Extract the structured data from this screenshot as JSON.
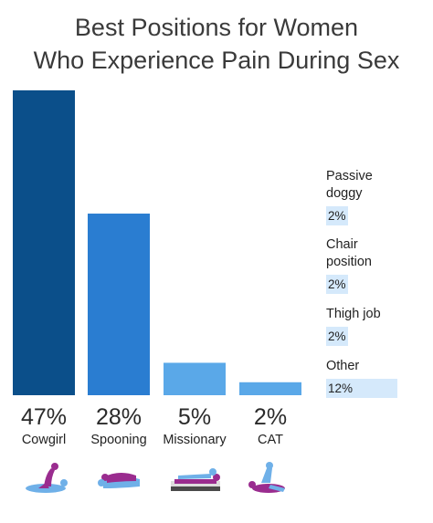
{
  "title_lines": [
    "Best Positions for Women",
    "Who Experience Pain During Sex"
  ],
  "colors": {
    "bar_dark": "#0b4f8a",
    "bar_mid": "#2a7dd1",
    "bar_light": "#5aa8e8",
    "side_fill": "#d5e9fb",
    "icon_purple": "#9a2c8f",
    "icon_blue": "#6fb0e8"
  },
  "chart_data": {
    "type": "bar",
    "title": "Best Positions for Women Who Experience Pain During Sex",
    "categories": [
      "Cowgirl",
      "Spooning",
      "Missionary",
      "CAT"
    ],
    "values": [
      47,
      28,
      5,
      2
    ],
    "value_labels": [
      "47%",
      "28%",
      "5%",
      "2%"
    ],
    "icons": [
      "cowgirl-position-icon",
      "spooning-position-icon",
      "missionary-position-icon",
      "cat-position-icon"
    ],
    "ylim": [
      0,
      47
    ],
    "side_items": [
      {
        "name": "Passive doggy",
        "value": 2,
        "label": "2%"
      },
      {
        "name": "Chair position",
        "value": 2,
        "label": "2%"
      },
      {
        "name": "Thigh job",
        "value": 2,
        "label": "2%"
      },
      {
        "name": "Other",
        "value": 12,
        "label": "12%"
      }
    ]
  }
}
